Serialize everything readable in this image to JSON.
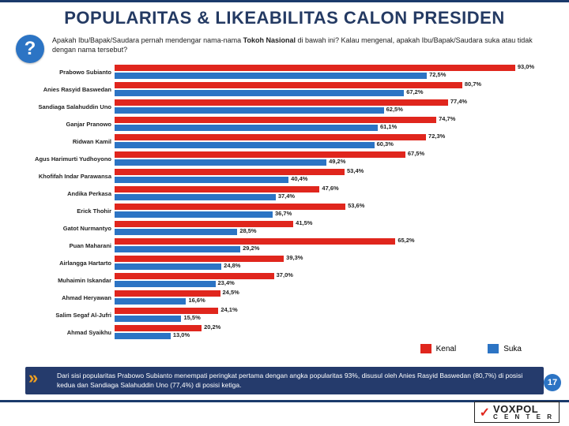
{
  "title": "POPULARITAS & LIKEABILITAS CALON PRESIDEN",
  "question_mark": "?",
  "question_html": "Apakah Ibu/Bapak/Saudara pernah mendengar nama-nama <span class='b'>Tokoh Nasional</span> di bawah ini?  Kalau mengenal, apakah Ibu/Bapak/Saudara suka atau tidak dengan nama tersebut?",
  "chart": {
    "type": "grouped-horizontal-bar",
    "xmax": 100,
    "colors": {
      "kenal": "#e0261d",
      "suka": "#2c74c4"
    },
    "label_fontsize": 7.5,
    "value_fontsize": 7.5,
    "rows": [
      {
        "name": "Prabowo Subianto",
        "kenal": 93.0,
        "suka": 72.5
      },
      {
        "name": "Anies Rasyid Baswedan",
        "kenal": 80.7,
        "suka": 67.2
      },
      {
        "name": "Sandiaga Salahuddin Uno",
        "kenal": 77.4,
        "suka": 62.5
      },
      {
        "name": "Ganjar Pranowo",
        "kenal": 74.7,
        "suka": 61.1
      },
      {
        "name": "Ridwan Kamil",
        "kenal": 72.3,
        "suka": 60.3
      },
      {
        "name": "Agus Harimurti Yudhoyono",
        "kenal": 67.5,
        "suka": 49.2
      },
      {
        "name": "Khofifah Indar Parawansa",
        "kenal": 53.4,
        "suka": 40.4
      },
      {
        "name": "Andika Perkasa",
        "kenal": 47.6,
        "suka": 37.4
      },
      {
        "name": "Erick Thohir",
        "kenal": 53.6,
        "suka": 36.7
      },
      {
        "name": "Gatot Nurmantyo",
        "kenal": 41.5,
        "suka": 28.5
      },
      {
        "name": "Puan Maharani",
        "kenal": 65.2,
        "suka": 29.2
      },
      {
        "name": "Airlangga Hartarto",
        "kenal": 39.3,
        "suka": 24.8
      },
      {
        "name": "Muhaimin Iskandar",
        "kenal": 37.0,
        "suka": 23.4
      },
      {
        "name": "Ahmad Heryawan",
        "kenal": 24.5,
        "suka": 16.6
      },
      {
        "name": "Salim Segaf Al-Jufri",
        "kenal": 24.1,
        "suka": 15.5
      },
      {
        "name": "Ahmad Syaikhu",
        "kenal": 20.2,
        "suka": 13.0
      }
    ]
  },
  "legend": {
    "kenal": "Kenal",
    "suka": "Suka"
  },
  "footnote": "Dari sisi popularitas Prabowo Subianto menempati peringkat pertama dengan angka popularitas 93%, disusul oleh Anies Rasyid Baswedan (80,7%) di posisi kedua dan Sandiaga Salahuddin Uno (77,4%) di posisi ketiga.",
  "page_number": "17",
  "logo": {
    "brand1": "VOXPOL",
    "brand2": "C E N T E R"
  }
}
